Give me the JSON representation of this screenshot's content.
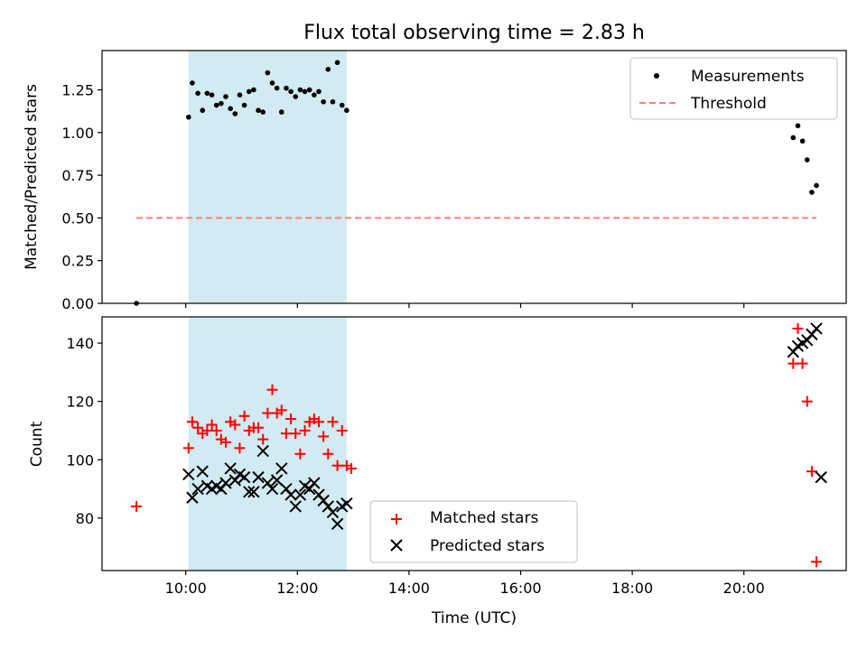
{
  "chart_data": [
    {
      "type": "scatter",
      "title": "Flux total observing time = 2.83 h",
      "xlabel": "",
      "ylabel": "Matched/Predicted stars",
      "xlim": [
        "08:30",
        "21:50"
      ],
      "ylim": [
        0,
        1.48
      ],
      "yticks": [
        0,
        0.25,
        0.5,
        0.75,
        1.0,
        1.25
      ],
      "ytick_labels": [
        "0.00",
        "0.25",
        "0.50",
        "0.75",
        "1.00",
        "1.25"
      ],
      "grid": false,
      "legend_position": "top-right",
      "shaded_interval": {
        "start": "10:03",
        "end": "12:53",
        "color": "#add8e6"
      },
      "series": [
        {
          "name": "Measurements",
          "marker": "dot",
          "color": "#000000",
          "points": [
            [
              "09:07",
              0.0
            ],
            [
              "10:03",
              1.09
            ],
            [
              "10:07",
              1.29
            ],
            [
              "10:13",
              1.23
            ],
            [
              "10:18",
              1.13
            ],
            [
              "10:23",
              1.23
            ],
            [
              "10:28",
              1.22
            ],
            [
              "10:33",
              1.16
            ],
            [
              "10:38",
              1.17
            ],
            [
              "10:43",
              1.21
            ],
            [
              "10:48",
              1.14
            ],
            [
              "10:53",
              1.11
            ],
            [
              "10:58",
              1.22
            ],
            [
              "11:03",
              1.16
            ],
            [
              "11:08",
              1.24
            ],
            [
              "11:13",
              1.25
            ],
            [
              "11:18",
              1.13
            ],
            [
              "11:23",
              1.12
            ],
            [
              "11:28",
              1.35
            ],
            [
              "11:33",
              1.29
            ],
            [
              "11:38",
              1.26
            ],
            [
              "11:43",
              1.12
            ],
            [
              "11:48",
              1.26
            ],
            [
              "11:53",
              1.24
            ],
            [
              "11:58",
              1.21
            ],
            [
              "12:03",
              1.25
            ],
            [
              "12:08",
              1.24
            ],
            [
              "12:13",
              1.25
            ],
            [
              "12:18",
              1.22
            ],
            [
              "12:23",
              1.24
            ],
            [
              "12:28",
              1.18
            ],
            [
              "12:33",
              1.37
            ],
            [
              "12:38",
              1.18
            ],
            [
              "12:43",
              1.41
            ],
            [
              "12:48",
              1.16
            ],
            [
              "12:53",
              1.13
            ],
            [
              "20:53",
              0.97
            ],
            [
              "20:58",
              1.04
            ],
            [
              "21:03",
              0.95
            ],
            [
              "21:08",
              0.84
            ],
            [
              "21:13",
              0.65
            ],
            [
              "21:18",
              0.69
            ]
          ]
        },
        {
          "name": "Threshold",
          "marker": "dashed-line",
          "color": "#ff7f7f",
          "points": [
            [
              "09:07",
              0.5
            ],
            [
              "21:18",
              0.5
            ]
          ]
        }
      ]
    },
    {
      "type": "scatter",
      "title": "",
      "xlabel": "Time (UTC)",
      "ylabel": "Count",
      "xlim": [
        "08:30",
        "21:50"
      ],
      "ylim": [
        62,
        149
      ],
      "xticks": [
        "10:00",
        "12:00",
        "14:00",
        "16:00",
        "18:00",
        "20:00"
      ],
      "yticks": [
        80,
        100,
        120,
        140
      ],
      "grid": false,
      "legend_position": "bottom-center",
      "shaded_interval": {
        "start": "10:03",
        "end": "12:53",
        "color": "#add8e6"
      },
      "series": [
        {
          "name": "Matched stars",
          "marker": "plus",
          "color": "#ff0000",
          "points": [
            [
              "09:07",
              84
            ],
            [
              "10:03",
              104
            ],
            [
              "10:07",
              113
            ],
            [
              "10:13",
              111
            ],
            [
              "10:18",
              109
            ],
            [
              "10:23",
              110
            ],
            [
              "10:28",
              112
            ],
            [
              "10:33",
              110
            ],
            [
              "10:38",
              107
            ],
            [
              "10:43",
              106
            ],
            [
              "10:48",
              113
            ],
            [
              "10:53",
              112
            ],
            [
              "10:58",
              104
            ],
            [
              "11:03",
              115
            ],
            [
              "11:08",
              110
            ],
            [
              "11:13",
              111
            ],
            [
              "11:18",
              111
            ],
            [
              "11:23",
              107
            ],
            [
              "11:28",
              116
            ],
            [
              "11:33",
              124
            ],
            [
              "11:38",
              116
            ],
            [
              "11:43",
              117
            ],
            [
              "11:48",
              109
            ],
            [
              "11:53",
              114
            ],
            [
              "11:58",
              109
            ],
            [
              "12:03",
              102
            ],
            [
              "12:08",
              110
            ],
            [
              "12:13",
              113
            ],
            [
              "12:18",
              114
            ],
            [
              "12:23",
              113
            ],
            [
              "12:28",
              108
            ],
            [
              "12:33",
              102
            ],
            [
              "12:38",
              113
            ],
            [
              "12:43",
              98
            ],
            [
              "12:48",
              110
            ],
            [
              "12:53",
              98
            ],
            [
              "12:58",
              97
            ],
            [
              "20:53",
              133
            ],
            [
              "20:58",
              145
            ],
            [
              "21:03",
              133
            ],
            [
              "21:08",
              120
            ],
            [
              "21:13",
              96
            ],
            [
              "21:18",
              65
            ]
          ]
        },
        {
          "name": "Predicted stars",
          "marker": "x",
          "color": "#000000",
          "points": [
            [
              "10:03",
              95
            ],
            [
              "10:07",
              87
            ],
            [
              "10:13",
              90
            ],
            [
              "10:18",
              96
            ],
            [
              "10:23",
              91
            ],
            [
              "10:28",
              90
            ],
            [
              "10:33",
              91
            ],
            [
              "10:38",
              90
            ],
            [
              "10:43",
              92
            ],
            [
              "10:48",
              97
            ],
            [
              "10:53",
              93
            ],
            [
              "10:58",
              95
            ],
            [
              "11:03",
              94
            ],
            [
              "11:08",
              89
            ],
            [
              "11:13",
              89
            ],
            [
              "11:18",
              94
            ],
            [
              "11:23",
              103
            ],
            [
              "11:28",
              92
            ],
            [
              "11:33",
              90
            ],
            [
              "11:38",
              93
            ],
            [
              "11:43",
              97
            ],
            [
              "11:48",
              90
            ],
            [
              "11:53",
              88
            ],
            [
              "11:58",
              84
            ],
            [
              "12:03",
              88
            ],
            [
              "12:08",
              91
            ],
            [
              "12:13",
              90
            ],
            [
              "12:18",
              92
            ],
            [
              "12:23",
              88
            ],
            [
              "12:28",
              86
            ],
            [
              "12:33",
              84
            ],
            [
              "12:38",
              82
            ],
            [
              "12:43",
              78
            ],
            [
              "12:48",
              84
            ],
            [
              "12:53",
              85
            ],
            [
              "20:53",
              137
            ],
            [
              "20:58",
              139
            ],
            [
              "21:03",
              140
            ],
            [
              "21:08",
              141
            ],
            [
              "21:13",
              143
            ],
            [
              "21:18",
              145
            ],
            [
              "21:23",
              94
            ]
          ]
        }
      ]
    }
  ]
}
